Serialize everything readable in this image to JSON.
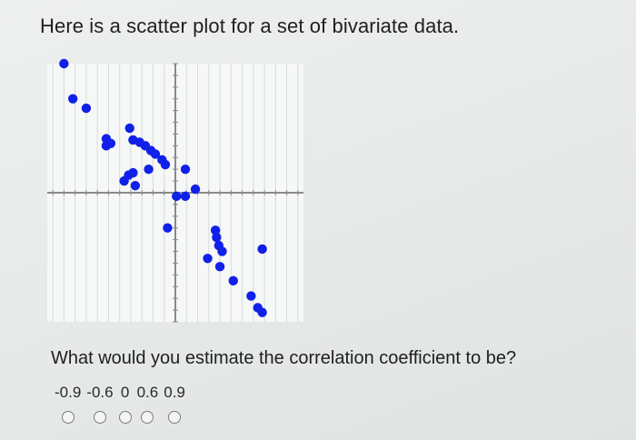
{
  "intro_text": "Here is a scatter plot for a set of bivariate data.",
  "question_text": "What would you estimate the correlation coefficient to be?",
  "choices": [
    "-0.9",
    "-0.6",
    "0",
    "0.6",
    "0.9"
  ],
  "colors": {
    "point": "#1020e8",
    "axis": "#8a8a8a",
    "grid_bg": "#f6f7f7",
    "grid_line": "#d7dada"
  },
  "chart_data": {
    "type": "scatter",
    "title": "",
    "xlabel": "",
    "ylabel": "",
    "xlim": [
      -11.5,
      11.5
    ],
    "ylim": [
      -11,
      11
    ],
    "grid": true,
    "points": [
      [
        -10,
        11
      ],
      [
        -9.2,
        8
      ],
      [
        -8,
        7.2
      ],
      [
        -6.2,
        4.6
      ],
      [
        -6.2,
        4
      ],
      [
        -5.8,
        4.2
      ],
      [
        -4.1,
        5.5
      ],
      [
        -3.8,
        4.5
      ],
      [
        -3.2,
        4.3
      ],
      [
        -2.7,
        4
      ],
      [
        -2.2,
        3.6
      ],
      [
        -1.8,
        3.3
      ],
      [
        -1.2,
        2.8
      ],
      [
        -0.9,
        2.4
      ],
      [
        -4.2,
        1.5
      ],
      [
        -3.8,
        1.7
      ],
      [
        -2.4,
        2.0
      ],
      [
        -4.6,
        1.0
      ],
      [
        -3.6,
        0.6
      ],
      [
        0.9,
        2.0
      ],
      [
        0.1,
        -0.3
      ],
      [
        0.9,
        -0.3
      ],
      [
        1.8,
        0.3
      ],
      [
        -0.7,
        -3.0
      ],
      [
        3.6,
        -3.2
      ],
      [
        3.7,
        -3.8
      ],
      [
        3.9,
        -4.5
      ],
      [
        4.2,
        -5.0
      ],
      [
        2.9,
        -5.6
      ],
      [
        4.0,
        -6.3
      ],
      [
        5.2,
        -7.5
      ],
      [
        7.8,
        -4.8
      ],
      [
        6.8,
        -8.8
      ],
      [
        7.4,
        -9.8
      ],
      [
        7.8,
        -10.2
      ]
    ]
  }
}
